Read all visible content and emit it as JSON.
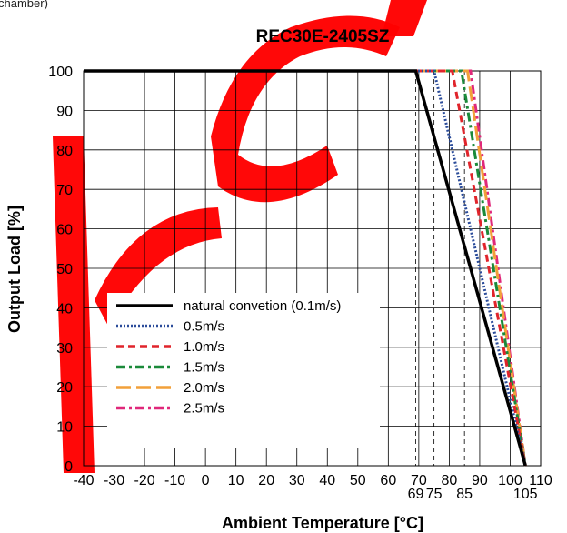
{
  "header_fragment": "chamber)",
  "chart_data": {
    "type": "line",
    "title": "REC30E-2405SZ",
    "xlabel": "Ambient Temperature [°C]",
    "ylabel": "Output Load [%]",
    "xlim": [
      -40,
      110
    ],
    "ylim": [
      0,
      100
    ],
    "xticks": [
      -40,
      -30,
      -20,
      -10,
      0,
      10,
      20,
      30,
      40,
      50,
      60,
      70,
      80,
      90,
      100,
      110
    ],
    "yticks": [
      0,
      10,
      20,
      30,
      40,
      50,
      60,
      70,
      80,
      90,
      100
    ],
    "extra_xticks": [
      69,
      75,
      85,
      105
    ],
    "grid": true,
    "legend_position": "bottom-left",
    "series": [
      {
        "name": "natural convetion (0.1m/s)",
        "color": "#000000",
        "style": "solid",
        "x": [
          -40,
          69,
          105
        ],
        "y": [
          100,
          100,
          0
        ]
      },
      {
        "name": "0.5m/s",
        "color": "#2b4c9a",
        "style": "dotted",
        "x": [
          -40,
          75,
          105
        ],
        "y": [
          100,
          100,
          0
        ]
      },
      {
        "name": "1.0m/s",
        "color": "#e0242b",
        "style": "dashed",
        "x": [
          -40,
          81,
          105
        ],
        "y": [
          100,
          100,
          0
        ]
      },
      {
        "name": "1.5m/s",
        "color": "#1b8a3a",
        "style": "dashdot",
        "x": [
          -40,
          84,
          105
        ],
        "y": [
          100,
          100,
          0
        ]
      },
      {
        "name": "2.0m/s",
        "color": "#f2a03a",
        "style": "longdash",
        "x": [
          -40,
          86,
          105
        ],
        "y": [
          100,
          100,
          0
        ]
      },
      {
        "name": "2.5m/s",
        "color": "#e0287a",
        "style": "dashdot",
        "x": [
          -40,
          87,
          105
        ],
        "y": [
          100,
          100,
          0
        ]
      }
    ],
    "vertical_markers": [
      69,
      75,
      85
    ]
  },
  "watermark": {
    "color": "#ff0000"
  }
}
